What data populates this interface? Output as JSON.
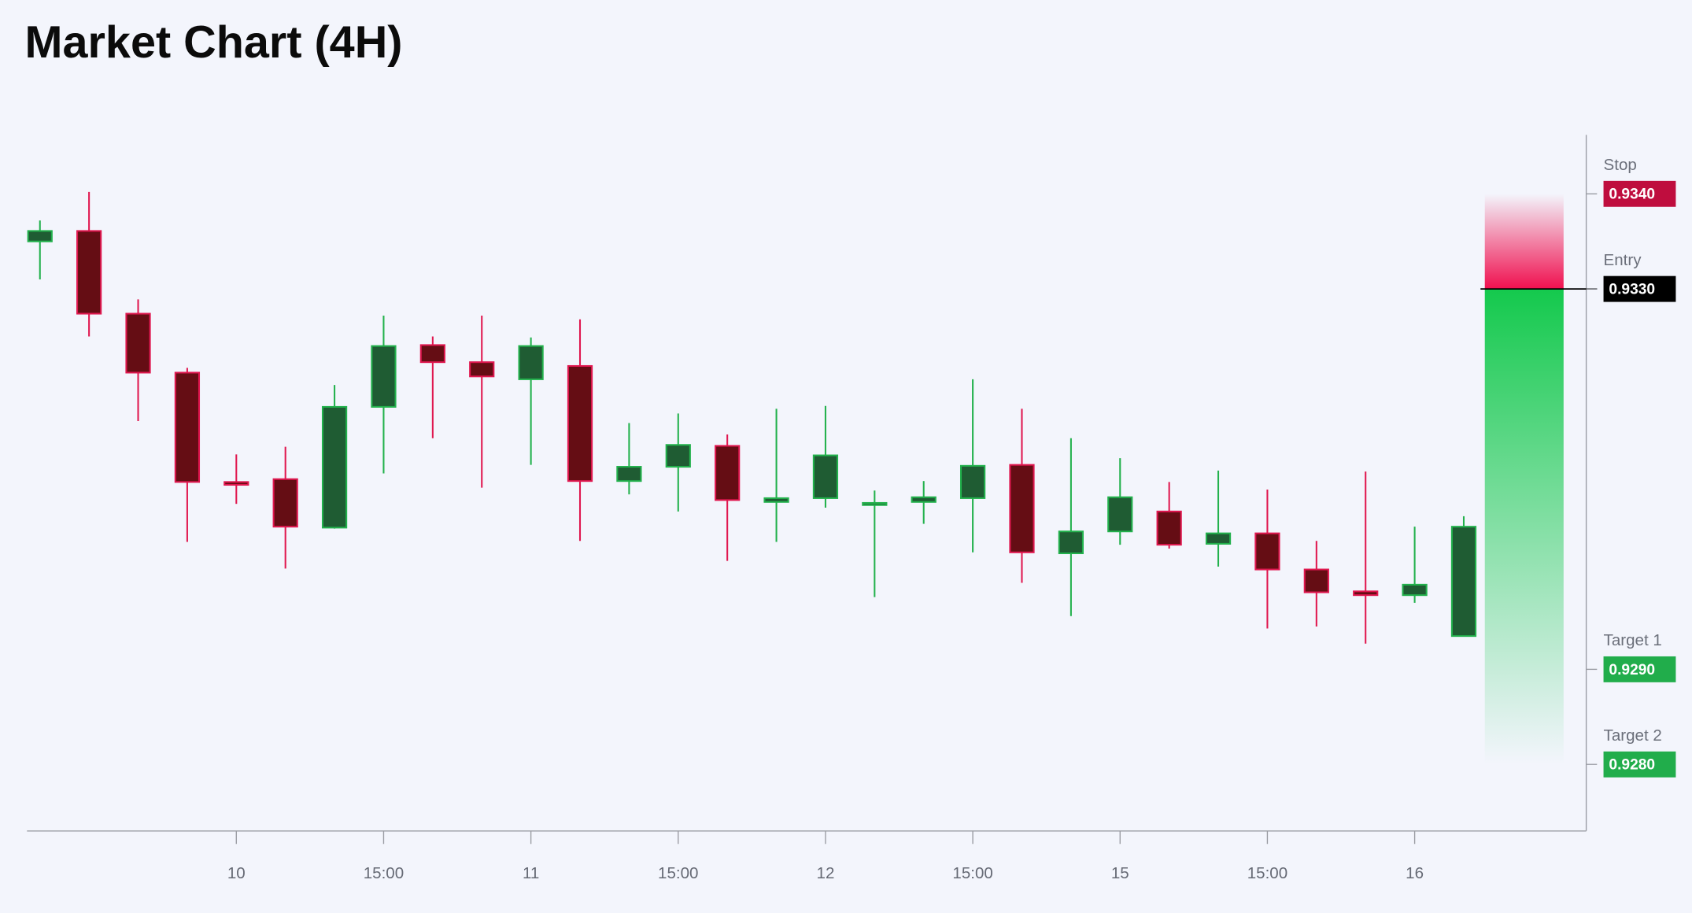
{
  "chart_data": {
    "type": "candlestick",
    "title": "Market Chart (4H)",
    "categories": [
      null,
      null,
      null,
      null,
      "10",
      null,
      null,
      "15:00",
      null,
      null,
      "11",
      null,
      null,
      "15:00",
      null,
      null,
      "12",
      null,
      null,
      "15:00",
      null,
      null,
      "15",
      null,
      null,
      "15:00",
      null,
      null,
      "16",
      null
    ],
    "series": [
      {
        "open": [
          0.9335,
          0.93361,
          0.93274,
          0.93212,
          0.93097,
          0.931,
          0.93049,
          0.93176,
          0.93241,
          0.93223,
          0.93205,
          0.93219,
          0.93098,
          0.93113,
          0.93135,
          0.93076,
          0.9308,
          0.93073,
          0.93076,
          0.9308,
          0.93115,
          0.93022,
          0.93045,
          0.93066,
          0.93032,
          0.93043,
          0.93005,
          0.92982,
          0.92978,
          0.92935
        ],
        "high": [
          0.93372,
          0.93402,
          0.93289,
          0.93217,
          0.93126,
          0.93134,
          0.93199,
          0.93272,
          0.9325,
          0.93272,
          0.93249,
          0.93268,
          0.93159,
          0.93169,
          0.93147,
          0.93174,
          0.93177,
          0.93088,
          0.93098,
          0.93205,
          0.93174,
          0.93143,
          0.93122,
          0.93097,
          0.93109,
          0.93089,
          0.93035,
          0.93108,
          0.9305,
          0.93061
        ],
        "low": [
          0.9331,
          0.9325,
          0.93161,
          0.93034,
          0.93074,
          0.93006,
          0.93048,
          0.93106,
          0.93143,
          0.93091,
          0.93115,
          0.93035,
          0.93084,
          0.93066,
          0.93014,
          0.93034,
          0.9307,
          0.92976,
          0.93053,
          0.93023,
          0.92991,
          0.92956,
          0.93031,
          0.93027,
          0.93008,
          0.92943,
          0.92945,
          0.92927,
          0.9297,
          0.92935
        ],
        "close": [
          0.93361,
          0.93274,
          0.93212,
          0.93097,
          0.93094,
          0.9305,
          0.93176,
          0.9324,
          0.93223,
          0.93208,
          0.9324,
          0.93098,
          0.93113,
          0.93136,
          0.93078,
          0.9308,
          0.93125,
          0.93075,
          0.93081,
          0.93114,
          0.93023,
          0.93045,
          0.93081,
          0.93031,
          0.93043,
          0.93005,
          0.92981,
          0.92978,
          0.92989,
          0.9305
        ]
      }
    ],
    "up_color": "#1f5c33",
    "up_border": "#22b14c",
    "down_color": "#650d14",
    "down_border": "#e0174f",
    "ylim": [
      0.9273,
      0.93462
    ],
    "levels": [
      {
        "name": "Stop",
        "value": 0.934,
        "label": "0.9340",
        "color": "#bf0d3e"
      },
      {
        "name": "Entry",
        "value": 0.933,
        "label": "0.9330",
        "color": "#000000"
      },
      {
        "name": "Target 1",
        "value": 0.929,
        "label": "0.9290",
        "color": "#21ad4b"
      },
      {
        "name": "Target 2",
        "value": 0.928,
        "label": "0.9280",
        "color": "#21ad4b"
      }
    ]
  }
}
